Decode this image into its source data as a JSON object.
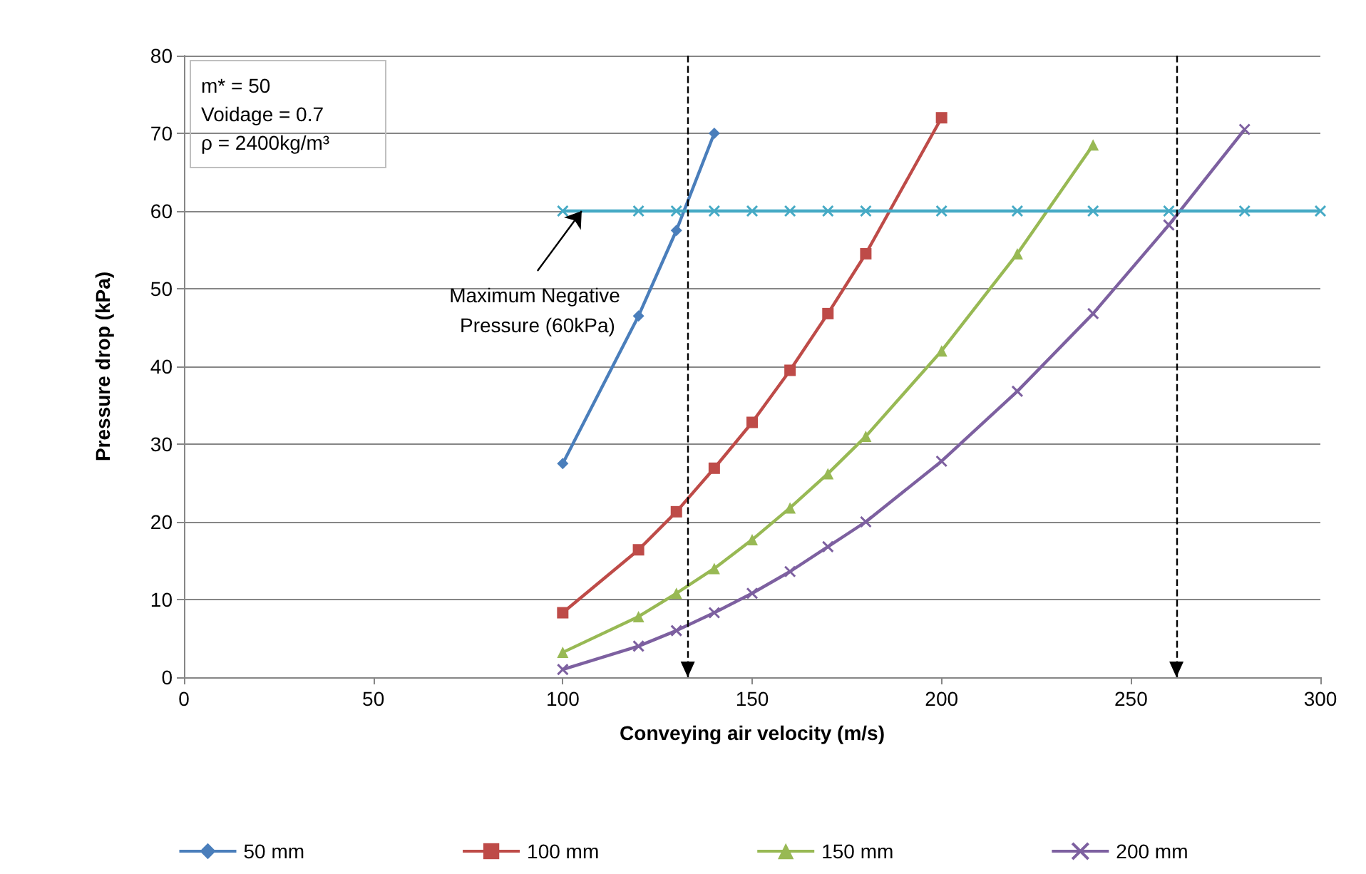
{
  "chart_data": {
    "type": "line",
    "xlabel": "Conveying air velocity (m/s)",
    "ylabel": "Pressure drop (kPa)",
    "xlim": [
      0,
      300
    ],
    "xticks": [
      0,
      50,
      100,
      150,
      200,
      250,
      300
    ],
    "ylim": [
      0,
      80
    ],
    "yticks": [
      0,
      10,
      20,
      30,
      40,
      50,
      60,
      70,
      80
    ],
    "grid": "y",
    "legend": "bottom",
    "series": [
      {
        "name": "50 mm",
        "color": "#4a7ebb",
        "marker": "diamond",
        "x": [
          100,
          120,
          130,
          140
        ],
        "values": [
          27.5,
          46.5,
          57.5,
          70
        ]
      },
      {
        "name": "100 mm",
        "color": "#be4b48",
        "marker": "square",
        "x": [
          100,
          120,
          130,
          140,
          150,
          160,
          170,
          180,
          200
        ],
        "values": [
          8.3,
          16.4,
          21.3,
          26.9,
          32.8,
          39.5,
          46.8,
          54.5,
          72
        ]
      },
      {
        "name": "150 mm",
        "color": "#98b954",
        "marker": "triangle",
        "x": [
          100,
          120,
          130,
          140,
          150,
          160,
          170,
          180,
          200,
          220,
          240
        ],
        "values": [
          3.2,
          7.8,
          10.8,
          14,
          17.7,
          21.8,
          26.2,
          31,
          42,
          54.5,
          68.5
        ]
      },
      {
        "name": "200 mm",
        "color": "#7d60a0",
        "marker": "cross",
        "x": [
          100,
          120,
          130,
          140,
          150,
          160,
          170,
          180,
          200,
          220,
          240,
          260,
          280
        ],
        "values": [
          1,
          4,
          6,
          8.3,
          10.8,
          13.6,
          16.8,
          20,
          27.8,
          36.8,
          46.8,
          58.2,
          70.5
        ]
      },
      {
        "color": "#46aac5",
        "marker": "cross",
        "x": [
          100,
          120,
          130,
          140,
          150,
          160,
          170,
          180,
          200,
          220,
          240,
          260,
          280,
          300
        ],
        "values": [
          60,
          60,
          60,
          60,
          60,
          60,
          60,
          60,
          60,
          60,
          60,
          60,
          60,
          60
        ]
      }
    ],
    "ref_lines": [
      {
        "axis": "x",
        "value": 133,
        "color": "#000000",
        "line_style": "dashed"
      },
      {
        "axis": "x",
        "value": 262,
        "color": "#000000",
        "line_style": "dashed"
      }
    ],
    "annotations": [
      "m* = 50",
      "Voidage = 0.7",
      "ρ = 2400kg/m³",
      {
        "text": "Maximum Negative Pressure (60kPa)",
        "x": 105,
        "y": 60
      }
    ]
  }
}
